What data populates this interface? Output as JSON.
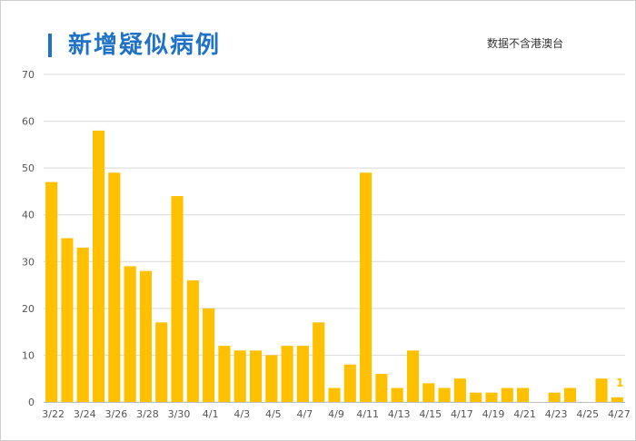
{
  "header": {
    "title": "新增疑似病例",
    "note": "数据不含港澳台"
  },
  "colors": {
    "bar": "#FFC000",
    "title": "#1F72C5",
    "grid": "#D9D9D9",
    "axis": "#BFBFBF"
  },
  "chart_data": {
    "type": "bar",
    "title": "新增疑似病例",
    "categories": [
      "3/22",
      "3/23",
      "3/24",
      "3/25",
      "3/26",
      "3/27",
      "3/28",
      "3/29",
      "3/30",
      "3/31",
      "4/1",
      "4/2",
      "4/3",
      "4/4",
      "4/5",
      "4/6",
      "4/7",
      "4/8",
      "4/9",
      "4/10",
      "4/11",
      "4/12",
      "4/13",
      "4/14",
      "4/15",
      "4/16",
      "4/17",
      "4/18",
      "4/19",
      "4/20",
      "4/21",
      "4/22",
      "4/23",
      "4/24",
      "4/25",
      "4/26",
      "4/27"
    ],
    "x_tick_labels": [
      "3/22",
      "3/24",
      "3/26",
      "3/28",
      "3/30",
      "4/1",
      "4/3",
      "4/5",
      "4/7",
      "4/9",
      "4/11",
      "4/13",
      "4/15",
      "4/17",
      "4/19",
      "4/21",
      "4/23",
      "4/25",
      "4/27"
    ],
    "values": [
      47,
      35,
      33,
      58,
      49,
      29,
      28,
      17,
      44,
      26,
      20,
      12,
      11,
      11,
      10,
      12,
      12,
      17,
      3,
      8,
      49,
      6,
      3,
      11,
      4,
      3,
      5,
      2,
      2,
      3,
      3,
      0,
      2,
      3,
      0,
      5,
      1
    ],
    "y_ticks": [
      0,
      10,
      20,
      30,
      40,
      50,
      60,
      70
    ],
    "ylim": [
      0,
      70
    ],
    "grid": true,
    "data_labels": [
      {
        "category": "4/27",
        "text": "1"
      }
    ]
  }
}
